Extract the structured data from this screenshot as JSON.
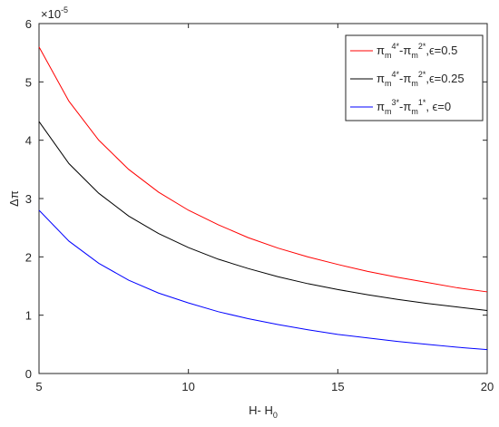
{
  "chart_data": {
    "type": "line",
    "x_label": "H- H_0",
    "y_label": "Δπ",
    "y_multiplier": "×10^{-5}",
    "x": [
      5,
      6,
      7,
      8,
      9,
      10,
      11,
      12,
      13,
      14,
      15,
      16,
      17,
      18,
      19,
      20
    ],
    "series": [
      {
        "name": "π_m^{4*}-π_m^{2*},ϵ=0.5",
        "color": "#ff0000",
        "values": [
          5.6,
          4.67,
          4.0,
          3.5,
          3.11,
          2.8,
          2.55,
          2.33,
          2.15,
          2.0,
          1.87,
          1.75,
          1.65,
          1.56,
          1.47,
          1.4
        ]
      },
      {
        "name": "π_m^{4*}-π_m^{2*},ϵ=0.25",
        "color": "#000000",
        "values": [
          4.32,
          3.6,
          3.09,
          2.7,
          2.4,
          2.16,
          1.96,
          1.8,
          1.66,
          1.54,
          1.44,
          1.35,
          1.27,
          1.2,
          1.14,
          1.08
        ]
      },
      {
        "name": "π_m^{3*}-π_m^{1*}, ϵ=0",
        "color": "#0000ff",
        "values": [
          2.8,
          2.27,
          1.89,
          1.6,
          1.38,
          1.21,
          1.06,
          0.94,
          0.84,
          0.75,
          0.67,
          0.61,
          0.55,
          0.5,
          0.45,
          0.41
        ]
      }
    ],
    "xlim": [
      5,
      20
    ],
    "xticks": [
      5,
      10,
      15,
      20
    ],
    "ylim": [
      0,
      6
    ],
    "yticks": [
      0,
      1,
      2,
      3,
      4,
      5,
      6
    ],
    "grid": false,
    "legend_position": "upper-right"
  }
}
